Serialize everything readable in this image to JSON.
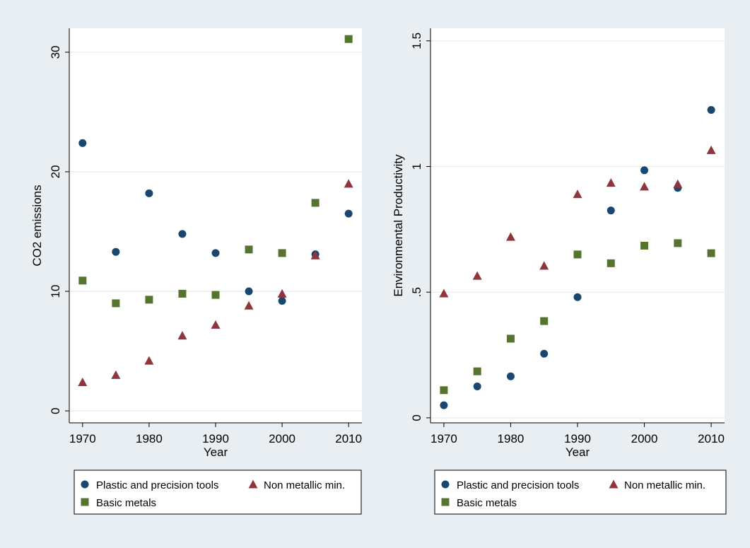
{
  "colors": {
    "background": "#e8eef2",
    "plot_bg": "#ffffff",
    "grid": "#e6ecef",
    "plastic": "#1a476f",
    "nonmetallic": "#90353b",
    "basic_metals": "#55752f"
  },
  "chart_data": [
    {
      "type": "scatter",
      "xlabel": "Year",
      "ylabel": "CO2 emissions",
      "xlim": [
        1968,
        2012
      ],
      "ylim": [
        -1,
        32
      ],
      "xticks": [
        1970,
        1980,
        1990,
        2000,
        2010
      ],
      "yticks": [
        0,
        10,
        20,
        30
      ],
      "ytick_labels": [
        "0",
        "10",
        "20",
        "30"
      ],
      "grid": true,
      "legend_position": "bottom",
      "x": [
        1970,
        1975,
        1980,
        1985,
        1990,
        1995,
        2000,
        2005,
        2010
      ],
      "series": [
        {
          "name": "Plastic and precision tools",
          "marker": "circle",
          "color": "#1a476f",
          "values": [
            22.4,
            13.3,
            18.2,
            14.8,
            13.2,
            10.0,
            9.2,
            13.1,
            16.5
          ]
        },
        {
          "name": "Non metallic min.",
          "marker": "triangle",
          "color": "#90353b",
          "values": [
            2.4,
            3.0,
            4.2,
            6.3,
            7.2,
            8.8,
            9.8,
            13.0,
            19.0
          ]
        },
        {
          "name": "Basic metals",
          "marker": "square",
          "color": "#55752f",
          "values": [
            10.9,
            9.0,
            9.3,
            9.8,
            9.7,
            13.5,
            13.2,
            17.4,
            31.1
          ]
        }
      ]
    },
    {
      "type": "scatter",
      "xlabel": "Year",
      "ylabel": "Environmental Productivity",
      "xlim": [
        1968,
        2012
      ],
      "ylim": [
        -0.02,
        1.55
      ],
      "xticks": [
        1970,
        1980,
        1990,
        2000,
        2010
      ],
      "yticks": [
        0,
        0.5,
        1,
        1.5
      ],
      "ytick_labels": [
        "0",
        ".5",
        "1",
        "1.5"
      ],
      "grid": true,
      "legend_position": "bottom",
      "x": [
        1970,
        1975,
        1980,
        1985,
        1990,
        1995,
        2000,
        2005,
        2010
      ],
      "series": [
        {
          "name": "Plastic and precision tools",
          "marker": "circle",
          "color": "#1a476f",
          "values": [
            0.05,
            0.125,
            0.165,
            0.255,
            0.48,
            0.825,
            0.985,
            0.915,
            1.225
          ]
        },
        {
          "name": "Non metallic min.",
          "marker": "triangle",
          "color": "#90353b",
          "values": [
            0.495,
            0.565,
            0.72,
            0.605,
            0.89,
            0.935,
            0.92,
            0.93,
            1.065
          ]
        },
        {
          "name": "Basic metals",
          "marker": "square",
          "color": "#55752f",
          "values": [
            0.11,
            0.185,
            0.315,
            0.385,
            0.65,
            0.615,
            0.685,
            0.695,
            0.655
          ]
        }
      ]
    }
  ]
}
